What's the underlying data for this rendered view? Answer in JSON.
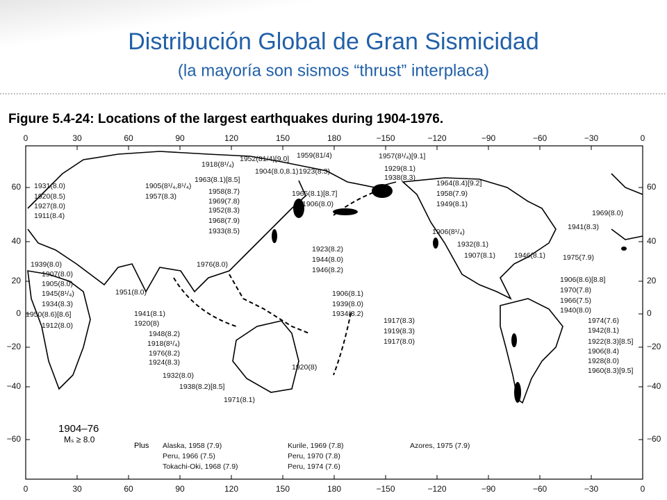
{
  "header": {
    "title": "Distribución Global de Gran Sismicidad",
    "subtitle": "(la mayoría son sismos “thrust” interplaca)"
  },
  "figure": {
    "caption": "Figure 5.4-24: Locations of the largest earthquakes during 1904-1976.",
    "lon_ticks_top": [
      "0",
      "30",
      "60",
      "90",
      "120",
      "150",
      "180",
      "−150",
      "−120",
      "−90",
      "−60",
      "−30",
      "0"
    ],
    "lon_ticks_bottom": [
      "0",
      "30",
      "60",
      "90",
      "120",
      "150",
      "180",
      "−150",
      "−120",
      "−90",
      "−60",
      "−30",
      "0"
    ],
    "lat_ticks_left": [
      "60",
      "40",
      "20",
      "0",
      "−20",
      "−40",
      "−60"
    ],
    "lat_ticks_right": [
      "60",
      "40",
      "20",
      "0",
      "−20",
      "−40",
      "−60"
    ],
    "labels": [
      "1931(8.0)",
      "1920(8.5)",
      "1927(8.0)",
      "1911(8.4)",
      "1939(8.0)",
      "1907(8.0)",
      "1905(8.0)",
      "1945(8¹/₄)",
      "1934(8.3)",
      "1950(8.6)[8.6]",
      "1912(8.0)",
      "1951(8.0)",
      "1941(8.1)",
      "1920(8)",
      "1948(8.2)",
      "1918(8¹/₄)",
      "1976(8.2)",
      "1924(8.3)",
      "1932(8.0)",
      "1938(8.2)[8.5]",
      "1971(8.1)",
      "1905(8¹/₄,8¹/₄)",
      "1957(8.3)",
      "1976(8.0)",
      "1918(8¹/₄)",
      "1952(81/4)[9.0]",
      "1959(81/4)",
      "1904(8.0,8.1)",
      "1923(8.3)",
      "1963(8.1)[8.5]",
      "1958(8.7)",
      "1969(7.8)",
      "1952(8.3)",
      "1968(7.9)",
      "1933(8.5)",
      "1965(8.1)[8.7]",
      "1906(8.0)",
      "1923(8.2)",
      "1944(8.0)",
      "1946(8.2)",
      "1906(8.1)",
      "1939(8.0)",
      "1934(8.2)",
      "1917(8.3)",
      "1919(8.3)",
      "1917(8.0)",
      "1920(8)",
      "1957(8¹/₄)[9.1]",
      "1929(8.1)",
      "1938(8.3)",
      "1964(8.4)[9.2]",
      "1958(7.9)",
      "1949(8.1)",
      "1906(8¹/₄)",
      "1932(8.1)",
      "1907(8.1)",
      "1946(8.1)",
      "1906(8.6)[8.8]",
      "1970(7.8)",
      "1966(7.5)",
      "1940(8.0)",
      "1974(7.6)",
      "1942(8.1)",
      "1922(8.3)[8.5]",
      "1906(8.4)",
      "1928(8.0)",
      "1960(8.3)[9.5]",
      "1969(8.0)",
      "1941(8.3)",
      "1975(7.9)"
    ],
    "legend": {
      "period": "1904–76",
      "magnitude": "Mₛ ≥ 8.0",
      "plus_title": "Plus",
      "plus": [
        "Alaska, 1958 (7.9)",
        "Peru, 1966 (7.5)",
        "Tokachi-Oki, 1968 (7.9)",
        "Kurile, 1969 (7.8)",
        "Peru, 1970 (7.8)",
        "Peru, 1974 (7.6)",
        "Azores, 1975 (7.9)"
      ]
    }
  }
}
